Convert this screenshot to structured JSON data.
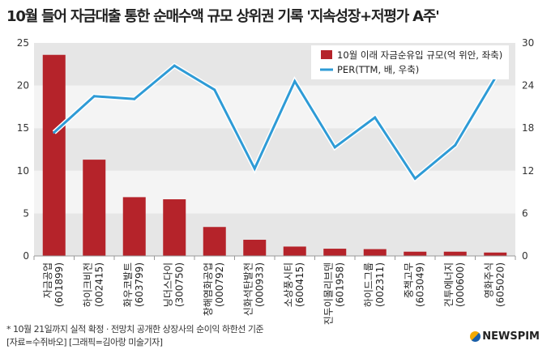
{
  "title": "10월 들어 자금대출 통한 순매수액 규모 상위권 기록 '지속성장+저평가 A주'",
  "chart_data": {
    "type": "bar+line",
    "categories": [
      [
        "자금공업",
        "(601899)"
      ],
      [
        "하이크비전",
        "(002415)"
      ],
      [
        "화우코발트",
        "(603799)"
      ],
      [
        "닝더스다이",
        "(300750)"
      ],
      [
        "창해염화공업",
        "(000792)"
      ],
      [
        "신화석탄발전",
        "(000933)"
      ],
      [
        "소상풍시티",
        "(600415)"
      ],
      [
        "진두이몰리브덴",
        "(601958)"
      ],
      [
        "하이드그룹",
        "(002311)"
      ],
      [
        "중책고무",
        "(603049)"
      ],
      [
        "건투에너지",
        "(000600)"
      ],
      [
        "영화주식",
        "(605020)"
      ]
    ],
    "series": [
      {
        "name": "10월 이래 자금순유입 규모(억 위안, 좌축)",
        "type": "bar",
        "axis": "left",
        "color": "#b5232a",
        "values": [
          23.6,
          11.3,
          6.9,
          6.65,
          3.4,
          1.9,
          1.1,
          0.85,
          0.8,
          0.5,
          0.5,
          0.4
        ]
      },
      {
        "name": "PER(TTM, 배, 우축)",
        "type": "line",
        "axis": "right",
        "color": "#2e9bd6",
        "values": [
          17.4,
          22.5,
          22.1,
          26.8,
          23.4,
          12.3,
          24.6,
          15.3,
          19.5,
          10.9,
          15.6,
          25.1
        ]
      }
    ],
    "y_left": {
      "range": [
        0,
        25
      ],
      "ticks": [
        "0",
        "5",
        "10",
        "15",
        "20",
        "25"
      ]
    },
    "y_right": {
      "range": [
        0,
        30
      ],
      "ticks": [
        "0",
        "6",
        "12",
        "18",
        "24",
        "30"
      ]
    },
    "legend": "top-right"
  },
  "footnote": "* 10월 21일까지 실적 확정 · 전망치 공개한 상장사의 순이익 하한선 기준",
  "source": "[자료=수쥐바오] [그래픽=김아랑 미술기자]",
  "logo": "NEWSPIM"
}
